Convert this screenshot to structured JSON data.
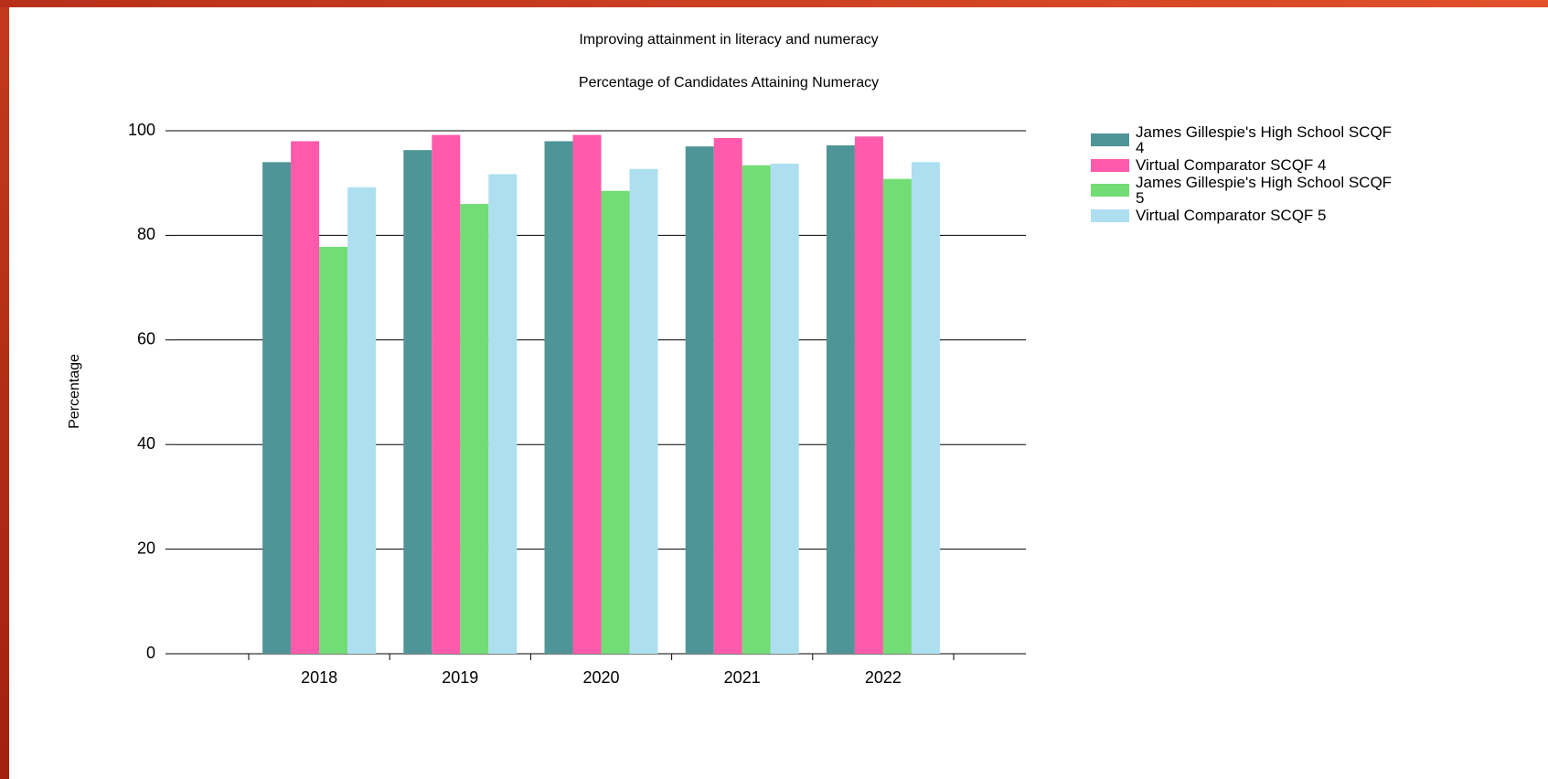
{
  "chart_data": {
    "type": "bar",
    "title": "Improving attainment in literacy and numeracy",
    "subtitle": "Percentage of Candidates Attaining Numeracy",
    "y_label": "Percentage",
    "categories": [
      "2018",
      "2019",
      "2020",
      "2021",
      "2022"
    ],
    "series": [
      {
        "name": "James Gillespie's High School SCQF 4",
        "color": "#4f9597",
        "values": [
          94,
          96.3,
          98,
          97,
          97.2
        ]
      },
      {
        "name": "Virtual Comparator SCQF 4",
        "color": "#ff5aab",
        "values": [
          98,
          99.2,
          99.2,
          98.6,
          98.9
        ]
      },
      {
        "name": "James Gillespie's High School SCQF 5",
        "color": "#72dc75",
        "values": [
          77.8,
          86,
          88.5,
          93.4,
          90.8
        ]
      },
      {
        "name": "Virtual Comparator SCQF 5",
        "color": "#addff0",
        "values": [
          89.2,
          91.7,
          92.7,
          93.7,
          94
        ]
      }
    ],
    "ylim": [
      0,
      100
    ],
    "yticks": [
      0,
      20,
      40,
      60,
      80,
      100
    ],
    "grid": true
  }
}
